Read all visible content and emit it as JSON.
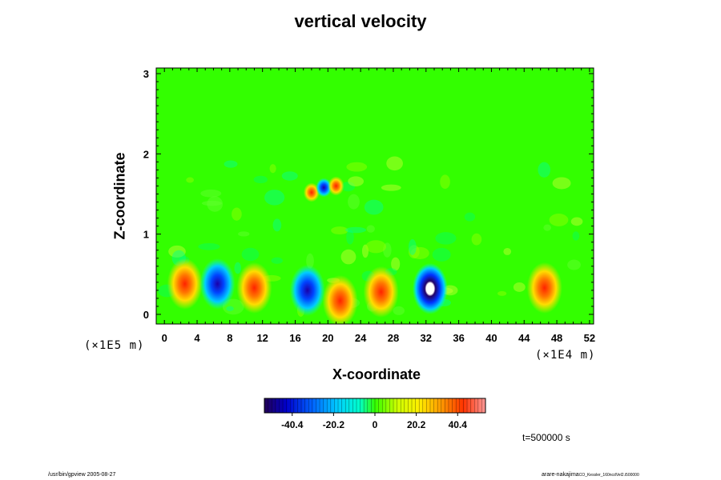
{
  "title": "vertical velocity",
  "xlabel": "X-coordinate",
  "ylabel": "Z-coordinate",
  "x_unit": "(×1E4 m)",
  "y_unit": "(×1E5 m)",
  "time_label": "t=500000 s",
  "footer_left": "/usr/bin/gpview 2005-08-27",
  "footer_right": "arare-nakajima",
  "footer_right_small": "CO_Kessler_160ncdVel2.i500000",
  "colors": {
    "background_field": "#33ff00",
    "frame": "#000000"
  },
  "chart_data": {
    "type": "heatmap",
    "title": "vertical velocity",
    "xlabel": "X-coordinate",
    "ylabel": "Z-coordinate",
    "x_unit": "×1E4 m",
    "y_unit": "×1E5 m",
    "xlim": [
      -1,
      52.5
    ],
    "ylim": [
      -0.12,
      3.07
    ],
    "x_ticks": [
      0,
      4,
      8,
      12,
      16,
      20,
      24,
      28,
      32,
      36,
      40,
      44,
      48,
      52
    ],
    "y_ticks": [
      0,
      1,
      2,
      3
    ],
    "colorbar": {
      "range": [
        -54,
        54
      ],
      "ticks": [
        -40.4,
        -20.2,
        0,
        20.2,
        40.4
      ],
      "tick_labels": [
        "-40.4",
        "-20.2",
        "0",
        "20.2",
        "40.4"
      ],
      "colormap": [
        "#220055",
        "#0000cc",
        "#0066ff",
        "#00ccff",
        "#00ffcc",
        "#33ff00",
        "#ccff00",
        "#ffee00",
        "#ff9900",
        "#ff3300",
        "#ff9999"
      ]
    },
    "features": [
      {
        "x": 2.5,
        "z": 0.38,
        "value": 40,
        "kind": "updraft"
      },
      {
        "x": 6.5,
        "z": 0.38,
        "value": -35,
        "kind": "downdraft"
      },
      {
        "x": 11.0,
        "z": 0.33,
        "value": 40,
        "kind": "updraft"
      },
      {
        "x": 17.5,
        "z": 0.3,
        "value": -38,
        "kind": "downdraft"
      },
      {
        "x": 21.5,
        "z": 0.17,
        "value": 30,
        "kind": "updraft"
      },
      {
        "x": 26.5,
        "z": 0.28,
        "value": 28,
        "kind": "updraft"
      },
      {
        "x": 32.5,
        "z": 0.32,
        "value": -50,
        "kind": "downdraft"
      },
      {
        "x": 46.5,
        "z": 0.33,
        "value": 32,
        "kind": "updraft"
      },
      {
        "x": 18.0,
        "z": 1.52,
        "value": 30,
        "kind": "updraft"
      },
      {
        "x": 19.5,
        "z": 1.58,
        "value": -25,
        "kind": "downdraft"
      },
      {
        "x": 21.0,
        "z": 1.6,
        "value": 22,
        "kind": "updraft"
      }
    ]
  }
}
